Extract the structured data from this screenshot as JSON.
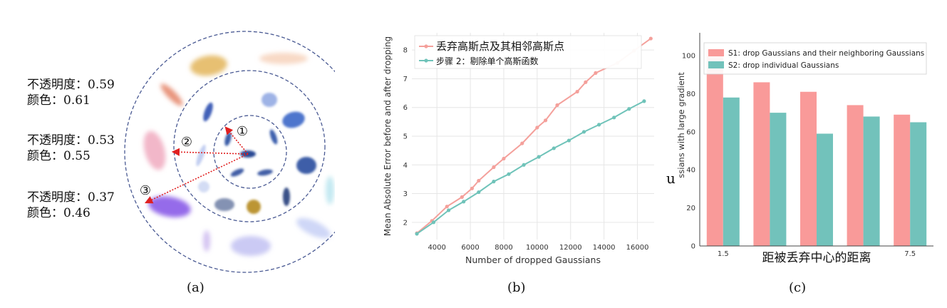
{
  "panel_a": {
    "caption": "(a)",
    "labels": [
      {
        "opacity_label": "不透明度：0.59",
        "color_label": "颜色：0.61"
      },
      {
        "opacity_label": "不透明度：0.53",
        "color_label": "颜色：0.55"
      },
      {
        "opacity_label": "不透明度：0.37",
        "color_label": "颜色：0.46"
      }
    ],
    "markers": [
      "①",
      "②",
      "③"
    ]
  },
  "panel_b": {
    "caption": "(b)"
  },
  "panel_c": {
    "caption": "(c)",
    "stray_text": "u"
  },
  "chart_data": [
    {
      "type": "line",
      "xlabel": "Number of dropped Gaussians",
      "ylabel": "Mean Absolute Error before and after dropping",
      "xlim": [
        2500,
        17000
      ],
      "ylim": [
        1.4,
        8.6
      ],
      "xticks": [
        4000,
        6000,
        8000,
        10000,
        12000,
        14000,
        16000
      ],
      "yticks": [
        2,
        3,
        4,
        5,
        6,
        7,
        8
      ],
      "grid": true,
      "legend": "top-left",
      "series": [
        {
          "name": "丢弃高斯点及其相邻高斯点",
          "color": "#f4a09b",
          "points": [
            [
              2800,
              1.62
            ],
            [
              3700,
              2.05
            ],
            [
              4600,
              2.55
            ],
            [
              5500,
              2.88
            ],
            [
              6100,
              3.18
            ],
            [
              6500,
              3.45
            ],
            [
              7400,
              3.92
            ],
            [
              8000,
              4.22
            ],
            [
              9100,
              4.75
            ],
            [
              10000,
              5.3
            ],
            [
              10500,
              5.55
            ],
            [
              11200,
              6.08
            ],
            [
              12400,
              6.55
            ],
            [
              12900,
              6.88
            ],
            [
              13500,
              7.2
            ],
            [
              14800,
              7.55
            ],
            [
              15800,
              7.98
            ],
            [
              16800,
              8.4
            ]
          ]
        },
        {
          "name": "步骤 2：剔除单个高斯函数",
          "color": "#6fc3b9",
          "points": [
            [
              2800,
              1.6
            ],
            [
              3800,
              2.0
            ],
            [
              4700,
              2.42
            ],
            [
              5600,
              2.72
            ],
            [
              6500,
              3.05
            ],
            [
              7400,
              3.42
            ],
            [
              8300,
              3.68
            ],
            [
              9200,
              4.0
            ],
            [
              10100,
              4.28
            ],
            [
              11000,
              4.58
            ],
            [
              11900,
              4.85
            ],
            [
              12800,
              5.15
            ],
            [
              13700,
              5.4
            ],
            [
              14600,
              5.65
            ],
            [
              15500,
              5.95
            ],
            [
              16400,
              6.22
            ]
          ]
        }
      ]
    },
    {
      "type": "bar",
      "ylabel": "ssians with large gradient",
      "xlabel": "距被丢弃中心的距离",
      "ylim": [
        0,
        112
      ],
      "yticks": [
        0,
        20,
        40,
        60,
        80,
        100
      ],
      "categories": [
        "1.5",
        "",
        "",
        "",
        "7.5"
      ],
      "legend": "top-left",
      "series": [
        {
          "name": "S1: drop Gaussians and their neighboring Gaussians",
          "color": "#f99a99",
          "values": [
            103,
            86,
            81,
            74,
            69
          ]
        },
        {
          "name": "S2: drop individual Gaussians",
          "color": "#72c2bb",
          "values": [
            78,
            70,
            59,
            68,
            65
          ]
        }
      ]
    }
  ]
}
